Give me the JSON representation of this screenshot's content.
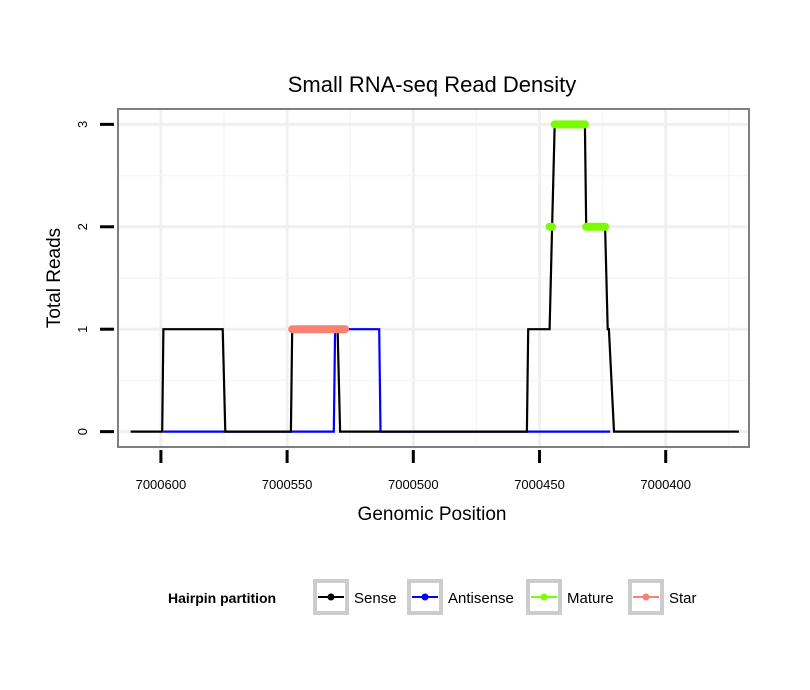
{
  "chart_data": {
    "type": "line",
    "title": "Small RNA-seq Read Density",
    "xlabel": "Genomic Position",
    "ylabel": "Total Reads",
    "xlim": [
      7000617,
      7000367
    ],
    "ylim": [
      -0.15,
      3.15
    ],
    "x_reversed": true,
    "x_ticks": [
      7000600,
      7000550,
      7000500,
      7000450,
      7000400
    ],
    "x_tick_labels": [
      "7000600",
      "7000550",
      "7000500",
      "7000450",
      "7000400"
    ],
    "y_ticks": [
      0,
      1,
      2,
      3
    ],
    "y_tick_labels": [
      "0",
      "1",
      "2",
      "3"
    ],
    "grid": true,
    "legend": {
      "title": "Hairpin partition",
      "position": "bottom",
      "entries": [
        {
          "name": "Sense",
          "color": "#000000"
        },
        {
          "name": "Antisense",
          "color": "#0000ff"
        },
        {
          "name": "Mature",
          "color": "#7cfc00"
        },
        {
          "name": "Star",
          "color": "#fa8072"
        }
      ]
    },
    "series": [
      {
        "name": "Sense",
        "color": "#000000",
        "kind": "line",
        "points": [
          [
            7000612,
            0
          ],
          [
            7000599.5,
            0
          ],
          [
            7000599,
            1
          ],
          [
            7000575.5,
            1
          ],
          [
            7000574.5,
            0
          ],
          [
            7000548.5,
            0
          ],
          [
            7000548,
            1
          ],
          [
            7000530,
            1
          ],
          [
            7000529,
            0
          ],
          [
            7000455,
            0
          ],
          [
            7000454.5,
            1
          ],
          [
            7000446,
            1
          ],
          [
            7000445,
            2
          ],
          [
            7000444,
            3
          ],
          [
            7000432,
            3
          ],
          [
            7000431.5,
            2
          ],
          [
            7000424,
            2
          ],
          [
            7000423,
            1
          ],
          [
            7000422.5,
            1
          ],
          [
            7000420.5,
            0
          ],
          [
            7000371,
            0
          ]
        ]
      },
      {
        "name": "Antisense",
        "color": "#0000ff",
        "kind": "line",
        "points": [
          [
            7000599,
            0
          ],
          [
            7000531.5,
            0
          ],
          [
            7000531,
            1
          ],
          [
            7000513.5,
            1
          ],
          [
            7000513,
            0
          ],
          [
            7000422,
            0
          ]
        ]
      },
      {
        "name": "Mature",
        "color": "#7cfc00",
        "kind": "segments",
        "segments": [
          {
            "x0": 7000444,
            "x1": 7000432,
            "y": 3
          },
          {
            "x0": 7000446,
            "x1": 7000445,
            "y": 2
          },
          {
            "x0": 7000431.5,
            "x1": 7000424,
            "y": 2
          }
        ]
      },
      {
        "name": "Star",
        "color": "#fa8072",
        "kind": "segments",
        "segments": [
          {
            "x0": 7000548,
            "x1": 7000527,
            "y": 1
          }
        ]
      }
    ]
  }
}
